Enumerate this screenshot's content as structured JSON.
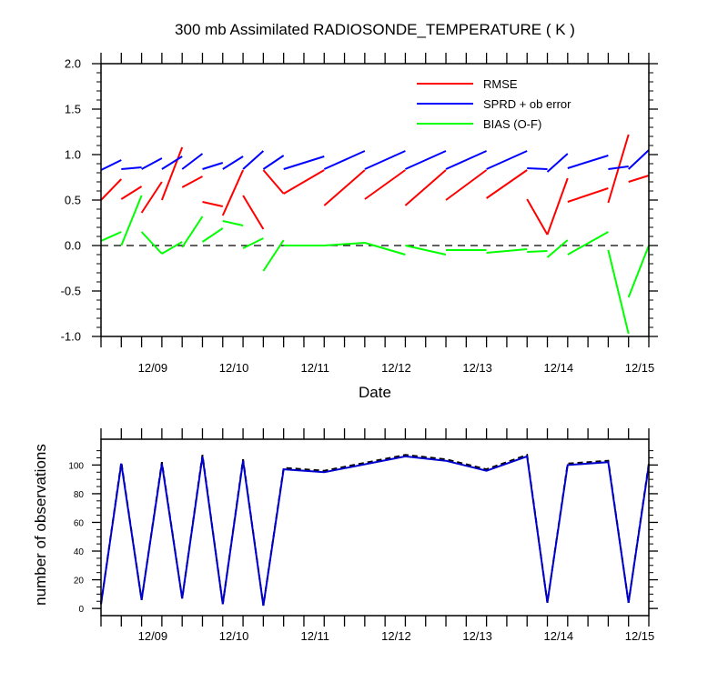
{
  "chart_data": [
    {
      "type": "line",
      "title": "300 mb Assimilated RADIOSONDE_TEMPERATURE ( K )",
      "xlabel": "Date",
      "ylabel": "",
      "x_tick_labels": [
        "12/09",
        "12/10",
        "12/11",
        "12/12",
        "12/13",
        "12/14",
        "12/15"
      ],
      "x_range_days": [
        8.25,
        15.0
      ],
      "ylim": [
        -1.0,
        2.0
      ],
      "y_ticks": [
        "-1.0",
        "-0.5",
        "0.0",
        "0.5",
        "1.0",
        "1.5",
        "2.0"
      ],
      "zero_line": true,
      "legend_position": "top-right",
      "series": [
        {
          "name": "RMSE",
          "color": "#ff0000",
          "segments": [
            [
              [
                8.25,
                0.5
              ],
              [
                8.5,
                0.73
              ]
            ],
            [
              [
                8.5,
                0.51
              ],
              [
                8.75,
                0.65
              ]
            ],
            [
              [
                8.75,
                0.36
              ],
              [
                9.0,
                0.7
              ]
            ],
            [
              [
                9.0,
                0.5
              ],
              [
                9.25,
                1.08
              ]
            ],
            [
              [
                9.25,
                0.64
              ],
              [
                9.5,
                0.76
              ]
            ],
            [
              [
                9.5,
                0.48
              ],
              [
                9.75,
                0.43
              ]
            ],
            [
              [
                9.75,
                0.33
              ],
              [
                10.0,
                0.83
              ]
            ],
            [
              [
                10.0,
                0.55
              ],
              [
                10.25,
                0.18
              ]
            ],
            [
              [
                10.25,
                0.83
              ],
              [
                10.5,
                0.57
              ]
            ],
            [
              [
                10.5,
                0.57
              ],
              [
                11.0,
                0.83
              ]
            ],
            [
              [
                11.0,
                0.44
              ],
              [
                11.5,
                0.83
              ]
            ],
            [
              [
                11.5,
                0.51
              ],
              [
                12.0,
                0.83
              ]
            ],
            [
              [
                12.0,
                0.44
              ],
              [
                12.5,
                0.83
              ]
            ],
            [
              [
                12.5,
                0.5
              ],
              [
                13.0,
                0.83
              ]
            ],
            [
              [
                13.0,
                0.52
              ],
              [
                13.5,
                0.83
              ]
            ],
            [
              [
                13.5,
                0.51
              ],
              [
                13.75,
                0.12
              ]
            ],
            [
              [
                13.75,
                0.12
              ],
              [
                14.0,
                0.74
              ]
            ],
            [
              [
                14.0,
                0.48
              ],
              [
                14.5,
                0.63
              ]
            ],
            [
              [
                14.5,
                0.47
              ],
              [
                14.75,
                1.22
              ]
            ],
            [
              [
                14.75,
                0.7
              ],
              [
                15.0,
                0.77
              ]
            ]
          ]
        },
        {
          "name": "SPRD + ob error",
          "color": "#0000ff",
          "segments": [
            [
              [
                8.25,
                0.83
              ],
              [
                8.5,
                0.94
              ]
            ],
            [
              [
                8.5,
                0.84
              ],
              [
                8.75,
                0.86
              ]
            ],
            [
              [
                8.75,
                0.84
              ],
              [
                9.0,
                0.96
              ]
            ],
            [
              [
                9.0,
                0.84
              ],
              [
                9.25,
                0.98
              ]
            ],
            [
              [
                9.25,
                0.84
              ],
              [
                9.5,
                1.01
              ]
            ],
            [
              [
                9.5,
                0.84
              ],
              [
                9.75,
                0.91
              ]
            ],
            [
              [
                9.75,
                0.84
              ],
              [
                10.0,
                0.98
              ]
            ],
            [
              [
                10.0,
                0.84
              ],
              [
                10.25,
                1.04
              ]
            ],
            [
              [
                10.25,
                0.84
              ],
              [
                10.5,
                0.99
              ]
            ],
            [
              [
                10.5,
                0.84
              ],
              [
                11.0,
                0.98
              ]
            ],
            [
              [
                11.0,
                0.84
              ],
              [
                11.5,
                1.04
              ]
            ],
            [
              [
                11.5,
                0.84
              ],
              [
                12.0,
                1.04
              ]
            ],
            [
              [
                12.0,
                0.84
              ],
              [
                12.5,
                1.04
              ]
            ],
            [
              [
                12.5,
                0.84
              ],
              [
                13.0,
                1.04
              ]
            ],
            [
              [
                13.0,
                0.84
              ],
              [
                13.5,
                1.04
              ]
            ],
            [
              [
                13.5,
                0.85
              ],
              [
                13.75,
                0.84
              ]
            ],
            [
              [
                13.75,
                0.81
              ],
              [
                14.0,
                1.01
              ]
            ],
            [
              [
                14.0,
                0.85
              ],
              [
                14.5,
                0.99
              ]
            ],
            [
              [
                14.5,
                0.84
              ],
              [
                14.75,
                0.87
              ]
            ],
            [
              [
                14.75,
                0.84
              ],
              [
                15.0,
                1.05
              ]
            ]
          ]
        },
        {
          "name": "BIAS (O-F)",
          "color": "#00ff00",
          "segments": [
            [
              [
                8.25,
                0.05
              ],
              [
                8.5,
                0.15
              ]
            ],
            [
              [
                8.5,
                0.0
              ],
              [
                8.75,
                0.55
              ]
            ],
            [
              [
                8.75,
                0.15
              ],
              [
                9.0,
                -0.09
              ]
            ],
            [
              [
                9.0,
                -0.09
              ],
              [
                9.25,
                0.04
              ]
            ],
            [
              [
                9.25,
                -0.02
              ],
              [
                9.5,
                0.32
              ]
            ],
            [
              [
                9.5,
                0.04
              ],
              [
                9.75,
                0.19
              ]
            ],
            [
              [
                9.75,
                0.27
              ],
              [
                10.0,
                0.22
              ]
            ],
            [
              [
                10.0,
                -0.03
              ],
              [
                10.25,
                0.08
              ]
            ],
            [
              [
                10.25,
                -0.28
              ],
              [
                10.5,
                0.06
              ]
            ],
            [
              [
                10.5,
                0.0
              ],
              [
                11.0,
                0.0
              ]
            ],
            [
              [
                11.0,
                0.0
              ],
              [
                11.5,
                0.03
              ]
            ],
            [
              [
                11.5,
                0.03
              ],
              [
                12.0,
                -0.1
              ]
            ],
            [
              [
                12.0,
                0.0
              ],
              [
                12.5,
                -0.1
              ]
            ],
            [
              [
                12.5,
                -0.05
              ],
              [
                13.0,
                -0.05
              ]
            ],
            [
              [
                13.0,
                -0.08
              ],
              [
                13.5,
                -0.04
              ]
            ],
            [
              [
                13.5,
                -0.07
              ],
              [
                13.75,
                -0.06
              ]
            ],
            [
              [
                13.75,
                -0.13
              ],
              [
                14.0,
                0.06
              ]
            ],
            [
              [
                14.0,
                -0.1
              ],
              [
                14.5,
                0.15
              ]
            ],
            [
              [
                14.5,
                -0.05
              ],
              [
                14.75,
                -0.97
              ]
            ],
            [
              [
                14.75,
                -0.57
              ],
              [
                15.0,
                0.0
              ]
            ]
          ]
        }
      ]
    },
    {
      "type": "line",
      "title": "",
      "xlabel": "",
      "ylabel": "number of observations",
      "x_tick_labels": [
        "12/09",
        "12/10",
        "12/11",
        "12/12",
        "12/13",
        "12/14",
        "12/15"
      ],
      "x_range_days": [
        8.25,
        15.0
      ],
      "ylim": [
        -5,
        118
      ],
      "y_ticks": [
        "0",
        "20",
        "40",
        "60",
        "80",
        "100"
      ],
      "series": [
        {
          "color": "#000000",
          "dash": true,
          "points": [
            [
              8.25,
              3
            ],
            [
              8.5,
              102
            ],
            [
              8.75,
              6
            ],
            [
              9.0,
              102
            ],
            [
              9.25,
              7
            ],
            [
              9.5,
              107
            ],
            [
              9.75,
              3
            ],
            [
              10.0,
              104
            ],
            [
              10.25,
              2
            ],
            [
              10.5,
              98
            ],
            [
              11.0,
              96
            ],
            [
              12.0,
              107
            ],
            [
              12.5,
              104
            ],
            [
              13.0,
              97
            ],
            [
              13.5,
              107
            ],
            [
              13.75,
              4
            ],
            [
              14.0,
              101
            ],
            [
              14.5,
              103
            ],
            [
              14.75,
              4
            ],
            [
              15.0,
              101
            ]
          ]
        },
        {
          "color": "#0000cd",
          "dash": false,
          "points": [
            [
              8.25,
              3
            ],
            [
              8.5,
              101
            ],
            [
              8.75,
              6
            ],
            [
              9.0,
              101
            ],
            [
              9.25,
              7
            ],
            [
              9.5,
              106
            ],
            [
              9.75,
              3
            ],
            [
              10.0,
              103
            ],
            [
              10.25,
              2
            ],
            [
              10.5,
              97
            ],
            [
              11.0,
              95
            ],
            [
              12.0,
              106
            ],
            [
              12.5,
              103
            ],
            [
              13.0,
              96
            ],
            [
              13.5,
              106
            ],
            [
              13.75,
              4
            ],
            [
              14.0,
              100
            ],
            [
              14.5,
              102
            ],
            [
              14.75,
              4
            ],
            [
              15.0,
              100
            ]
          ]
        }
      ]
    }
  ]
}
